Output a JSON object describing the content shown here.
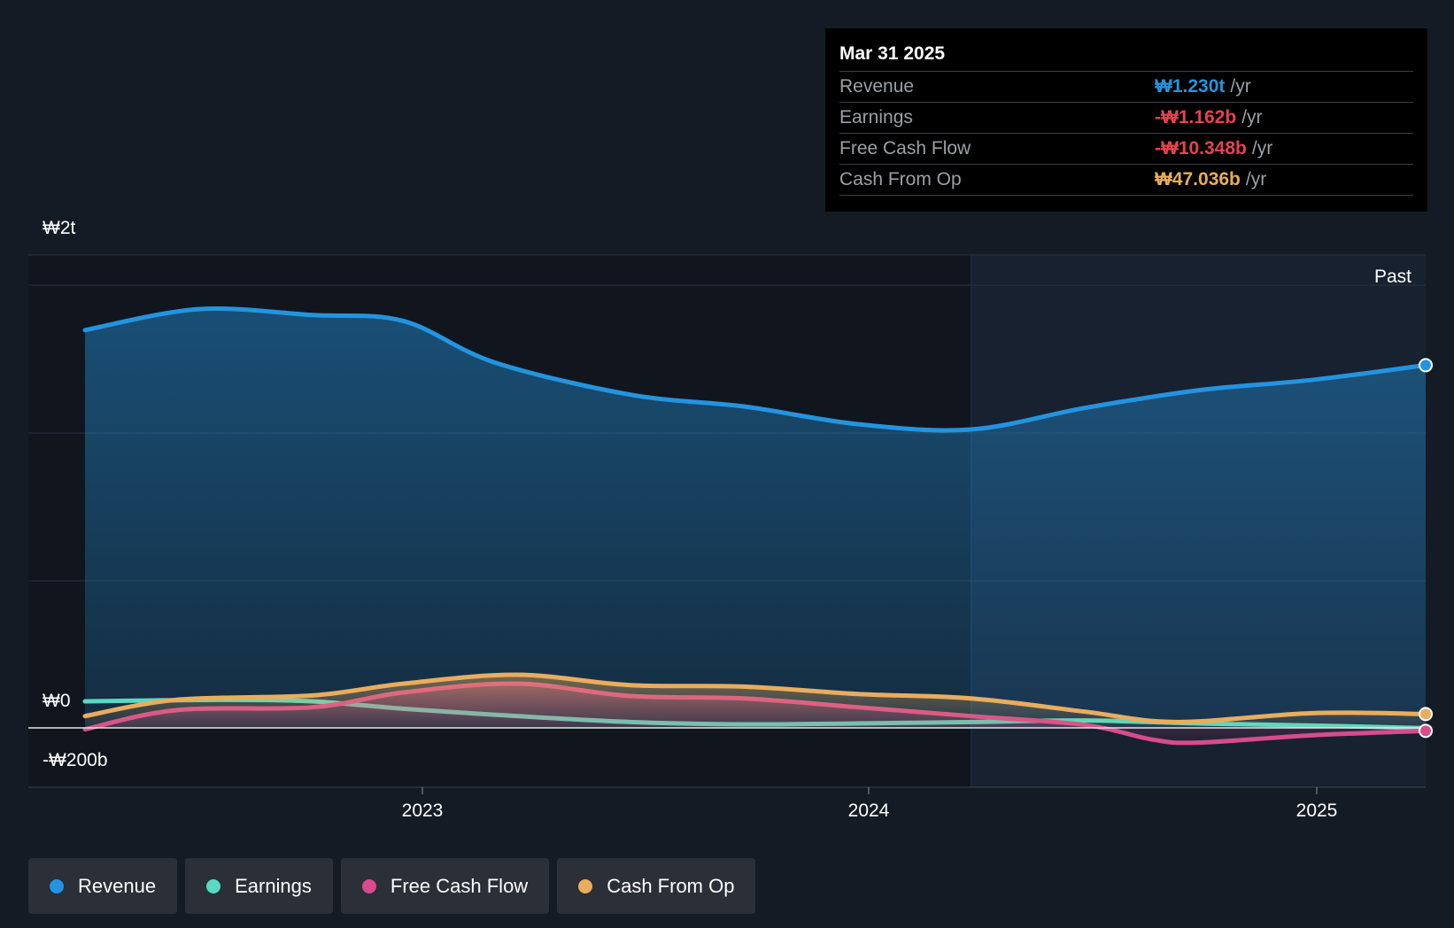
{
  "chart_data": {
    "type": "area",
    "x_axis_ticks": [
      "2023",
      "2024",
      "2025"
    ],
    "y_axis_labels": [
      {
        "label": "₩2t",
        "value": 1600
      },
      {
        "label": "₩0",
        "value": 0
      },
      {
        "label": "-₩200b",
        "value": -200
      }
    ],
    "ylim": [
      -200,
      1600
    ],
    "xlim": [
      2022.3,
      2025.25
    ],
    "past_label": "Past",
    "past_region_start": 2024.25,
    "series": [
      {
        "name": "Revenue",
        "color": "#2394df",
        "fill": true,
        "x": [
          2022.3,
          2022.55,
          2022.8,
          2023.0,
          2023.2,
          2023.5,
          2023.75,
          2024.0,
          2024.25,
          2024.5,
          2024.75,
          2025.0,
          2025.25
        ],
        "y": [
          1349,
          1420,
          1400,
          1380,
          1240,
          1130,
          1090,
          1030,
          1012,
          1085,
          1145,
          1180,
          1230
        ]
      },
      {
        "name": "Earnings",
        "color": "#58dac0",
        "fill": false,
        "x": [
          2022.3,
          2022.6,
          2022.8,
          2023.0,
          2023.25,
          2023.5,
          2023.75,
          2024.0,
          2024.25,
          2024.5,
          2024.75,
          2025.0,
          2025.25
        ],
        "y": [
          90,
          95,
          90,
          65,
          40,
          20,
          12,
          15,
          20,
          25,
          15,
          8,
          -1
        ]
      },
      {
        "name": "Free Cash Flow",
        "color": "#d84b8d",
        "fill": true,
        "x": [
          2022.3,
          2022.5,
          2022.8,
          2023.0,
          2023.25,
          2023.5,
          2023.75,
          2024.0,
          2024.25,
          2024.5,
          2024.65,
          2024.75,
          2025.0,
          2025.25
        ],
        "y": [
          -5,
          60,
          70,
          120,
          150,
          108,
          100,
          70,
          40,
          10,
          -40,
          -50,
          -25,
          -10
        ]
      },
      {
        "name": "Cash From Op",
        "color": "#e9ad5d",
        "fill": true,
        "x": [
          2022.3,
          2022.5,
          2022.8,
          2023.0,
          2023.25,
          2023.5,
          2023.75,
          2024.0,
          2024.25,
          2024.5,
          2024.7,
          2025.0,
          2025.25
        ],
        "y": [
          40,
          95,
          110,
          150,
          180,
          145,
          140,
          115,
          100,
          55,
          20,
          50,
          47
        ]
      }
    ],
    "grid": true,
    "legend_placement": "bottom"
  },
  "tooltip": {
    "date": "Mar 31 2025",
    "rows": [
      {
        "label": "Revenue",
        "value": "₩1.230t",
        "unit": "/yr",
        "color": "#2394df"
      },
      {
        "label": "Earnings",
        "value": "-₩1.162b",
        "unit": "/yr",
        "color": "#e6434e"
      },
      {
        "label": "Free Cash Flow",
        "value": "-₩10.348b",
        "unit": "/yr",
        "color": "#e6434e"
      },
      {
        "label": "Cash From Op",
        "value": "₩47.036b",
        "unit": "/yr",
        "color": "#e9ad5d"
      }
    ]
  },
  "legend": [
    {
      "label": "Revenue",
      "color": "#2394df"
    },
    {
      "label": "Earnings",
      "color": "#58dac0"
    },
    {
      "label": "Free Cash Flow",
      "color": "#d84b8d"
    },
    {
      "label": "Cash From Op",
      "color": "#e9ad5d"
    }
  ]
}
